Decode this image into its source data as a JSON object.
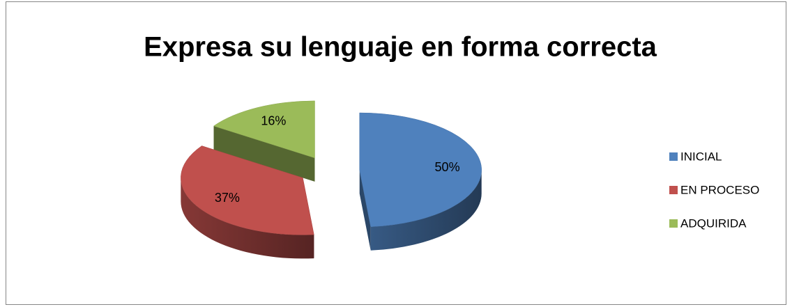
{
  "chart_data": {
    "type": "pie",
    "title": "Expresa su lenguaje en forma correcta",
    "categories": [
      "INICIAL",
      "EN PROCESO",
      "ADQUIRIDA"
    ],
    "values": [
      50,
      37,
      16
    ],
    "value_labels": [
      "50%",
      "37%",
      "16%"
    ],
    "colors": [
      "#4f81bd",
      "#c0504d",
      "#9bbb59"
    ],
    "legend": "right"
  }
}
